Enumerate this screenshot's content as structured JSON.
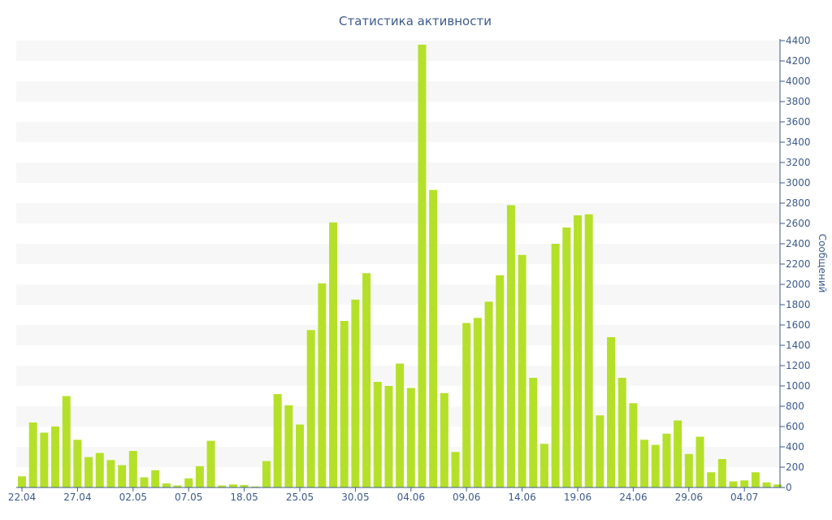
{
  "chart_data": {
    "type": "bar",
    "title": "Статистика активности",
    "xlabel": "",
    "ylabel": "Сообщений",
    "ylim": [
      0,
      4400
    ],
    "y_ticks": [
      0,
      200,
      400,
      600,
      800,
      1000,
      1200,
      1400,
      1600,
      1800,
      2000,
      2200,
      2400,
      2600,
      2800,
      3000,
      3200,
      3400,
      3600,
      3800,
      4000,
      4200,
      4400
    ],
    "x_tick_labels": [
      "22.04",
      "27.04",
      "02.05",
      "07.05",
      "18.05",
      "25.05",
      "30.05",
      "04.06",
      "09.06",
      "14.06",
      "19.06",
      "24.06",
      "29.06",
      "04.07"
    ],
    "x_tick_indices": [
      0,
      5,
      10,
      15,
      20,
      25,
      30,
      35,
      40,
      45,
      50,
      55,
      60,
      65
    ],
    "grid": "horizontal alternating bands",
    "y_axis_position": "right",
    "colors": {
      "bar": "#b5e02a",
      "band": "#f7f7f7",
      "axis": "#3d5a8c"
    },
    "series": [
      {
        "values": [
          110,
          640,
          540,
          600,
          900,
          470,
          300,
          340,
          270,
          220,
          360,
          100,
          170,
          40,
          20,
          90,
          210,
          460,
          20,
          30,
          25,
          10,
          260,
          920,
          810,
          620,
          1550,
          2010,
          2610,
          1640,
          1850,
          2110,
          1040,
          1000,
          1220,
          980,
          4360,
          2930,
          930,
          350,
          1620,
          1670,
          1830,
          2090,
          2780,
          2290,
          1080,
          430,
          2400,
          2560,
          2680,
          2690,
          710,
          1480,
          1080,
          830,
          470,
          420,
          530,
          660,
          330,
          500,
          150,
          280,
          60,
          70,
          150,
          50,
          30
        ]
      }
    ]
  }
}
